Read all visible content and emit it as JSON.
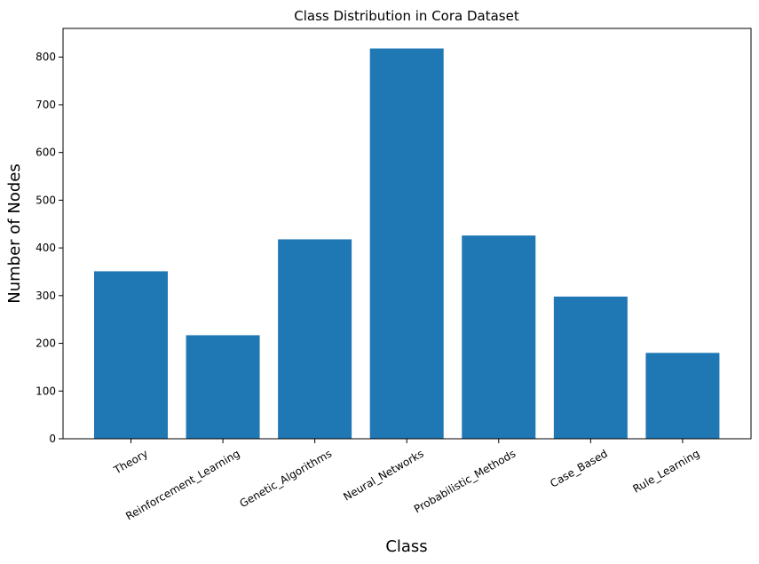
{
  "chart_data": {
    "type": "bar",
    "title": "Class Distribution in Cora Dataset",
    "xlabel": "Class",
    "ylabel": "Number of Nodes",
    "categories": [
      "Theory",
      "Reinforcement_Learning",
      "Genetic_Algorithms",
      "Neural_Networks",
      "Probabilistic_Methods",
      "Case_Based",
      "Rule_Learning"
    ],
    "values": [
      351,
      217,
      418,
      818,
      426,
      298,
      180
    ],
    "ylim": [
      0,
      860
    ],
    "yticks": [
      0,
      100,
      200,
      300,
      400,
      500,
      600,
      700,
      800
    ],
    "grid": false,
    "bar_color": "#1f77b4"
  }
}
